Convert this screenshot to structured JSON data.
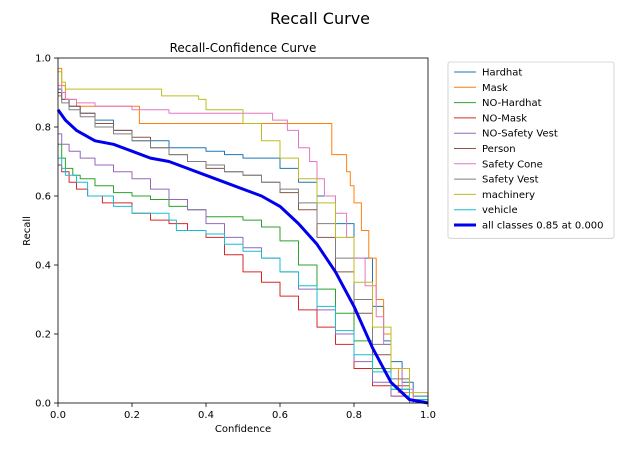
{
  "page_title": "Recall Curve",
  "chart_data": {
    "type": "line",
    "title": "Recall-Confidence Curve",
    "xlabel": "Confidence",
    "ylabel": "Recall",
    "xlim": [
      0,
      1
    ],
    "ylim": [
      0,
      1
    ],
    "xticks": [
      "0.0",
      "0.2",
      "0.4",
      "0.6",
      "0.8",
      "1.0"
    ],
    "yticks": [
      "0.0",
      "0.2",
      "0.4",
      "0.6",
      "0.8",
      "1.0"
    ],
    "grid": false,
    "legend_position": "outside-right",
    "series": [
      {
        "name": "Hardhat",
        "color": "#1f77b4",
        "step": true,
        "x": [
          0,
          0.01,
          0.03,
          0.06,
          0.1,
          0.15,
          0.2,
          0.3,
          0.4,
          0.45,
          0.5,
          0.55,
          0.6,
          0.65,
          0.7,
          0.75,
          0.8,
          0.85,
          0.88,
          0.9,
          0.93,
          0.96,
          1.0
        ],
        "y": [
          0.91,
          0.88,
          0.86,
          0.84,
          0.82,
          0.79,
          0.76,
          0.74,
          0.73,
          0.72,
          0.71,
          0.71,
          0.68,
          0.64,
          0.6,
          0.52,
          0.42,
          0.28,
          0.18,
          0.12,
          0.06,
          0.02,
          0.0
        ]
      },
      {
        "name": "Mask",
        "color": "#ff7f0e",
        "step": true,
        "x": [
          0,
          0.01,
          0.02,
          0.05,
          0.1,
          0.15,
          0.2,
          0.22,
          0.3,
          0.5,
          0.65,
          0.72,
          0.74,
          0.78,
          0.79,
          0.8,
          0.82,
          0.84,
          0.86,
          0.88,
          0.9,
          0.92,
          0.95,
          1.0
        ],
        "y": [
          0.97,
          0.92,
          0.88,
          0.86,
          0.86,
          0.86,
          0.86,
          0.81,
          0.81,
          0.81,
          0.81,
          0.81,
          0.72,
          0.67,
          0.63,
          0.58,
          0.5,
          0.42,
          0.3,
          0.2,
          0.1,
          0.03,
          0.0,
          0.0
        ]
      },
      {
        "name": "NO-Hardhat",
        "color": "#2ca02c",
        "step": true,
        "x": [
          0,
          0.01,
          0.02,
          0.04,
          0.06,
          0.1,
          0.15,
          0.2,
          0.25,
          0.3,
          0.35,
          0.4,
          0.5,
          0.55,
          0.6,
          0.65,
          0.7,
          0.75,
          0.8,
          0.85,
          0.9,
          0.95,
          1.0
        ],
        "y": [
          0.75,
          0.71,
          0.68,
          0.66,
          0.65,
          0.63,
          0.61,
          0.6,
          0.59,
          0.57,
          0.56,
          0.54,
          0.53,
          0.51,
          0.47,
          0.4,
          0.33,
          0.26,
          0.18,
          0.1,
          0.04,
          0.0,
          0.0
        ]
      },
      {
        "name": "NO-Mask",
        "color": "#d62728",
        "step": true,
        "x": [
          0,
          0.01,
          0.03,
          0.05,
          0.08,
          0.12,
          0.2,
          0.25,
          0.3,
          0.35,
          0.4,
          0.45,
          0.5,
          0.55,
          0.6,
          0.65,
          0.7,
          0.75,
          0.8,
          0.85,
          0.9,
          0.95,
          1.0
        ],
        "y": [
          0.69,
          0.67,
          0.64,
          0.62,
          0.6,
          0.58,
          0.55,
          0.53,
          0.52,
          0.5,
          0.48,
          0.43,
          0.38,
          0.35,
          0.31,
          0.27,
          0.22,
          0.17,
          0.1,
          0.05,
          0.02,
          0.0,
          0.0
        ]
      },
      {
        "name": "NO-Safety Vest",
        "color": "#9467bd",
        "step": true,
        "x": [
          0,
          0.01,
          0.03,
          0.06,
          0.1,
          0.15,
          0.2,
          0.25,
          0.3,
          0.35,
          0.4,
          0.45,
          0.5,
          0.55,
          0.6,
          0.65,
          0.7,
          0.75,
          0.8,
          0.85,
          0.9,
          0.95,
          1.0
        ],
        "y": [
          0.78,
          0.75,
          0.73,
          0.71,
          0.69,
          0.67,
          0.65,
          0.62,
          0.59,
          0.56,
          0.52,
          0.48,
          0.45,
          0.42,
          0.38,
          0.33,
          0.27,
          0.2,
          0.12,
          0.06,
          0.02,
          0.0,
          0.0
        ]
      },
      {
        "name": "Person",
        "color": "#8c564b",
        "step": true,
        "x": [
          0,
          0.01,
          0.03,
          0.06,
          0.1,
          0.15,
          0.2,
          0.25,
          0.3,
          0.35,
          0.4,
          0.45,
          0.5,
          0.55,
          0.6,
          0.65,
          0.7,
          0.75,
          0.8,
          0.85,
          0.9,
          0.95,
          1.0
        ],
        "y": [
          0.9,
          0.88,
          0.86,
          0.84,
          0.81,
          0.79,
          0.77,
          0.74,
          0.72,
          0.7,
          0.68,
          0.67,
          0.66,
          0.64,
          0.61,
          0.56,
          0.48,
          0.38,
          0.26,
          0.14,
          0.05,
          0.01,
          0.0
        ]
      },
      {
        "name": "Safety Cone",
        "color": "#e377c2",
        "step": true,
        "x": [
          0,
          0.01,
          0.02,
          0.05,
          0.1,
          0.15,
          0.2,
          0.3,
          0.4,
          0.5,
          0.55,
          0.58,
          0.62,
          0.65,
          0.68,
          0.7,
          0.72,
          0.75,
          0.78,
          0.8,
          0.83,
          0.86,
          0.88,
          0.9,
          0.93,
          0.96,
          1.0
        ],
        "y": [
          0.92,
          0.9,
          0.88,
          0.87,
          0.86,
          0.86,
          0.85,
          0.84,
          0.84,
          0.84,
          0.84,
          0.82,
          0.79,
          0.74,
          0.7,
          0.65,
          0.6,
          0.55,
          0.48,
          0.42,
          0.34,
          0.25,
          0.17,
          0.1,
          0.04,
          0.0,
          0.0
        ]
      },
      {
        "name": "Safety Vest",
        "color": "#7f7f7f",
        "step": true,
        "x": [
          0,
          0.01,
          0.03,
          0.06,
          0.1,
          0.15,
          0.2,
          0.25,
          0.3,
          0.35,
          0.4,
          0.45,
          0.5,
          0.55,
          0.6,
          0.65,
          0.7,
          0.75,
          0.8,
          0.85,
          0.9,
          0.95,
          1.0
        ],
        "y": [
          0.89,
          0.87,
          0.85,
          0.83,
          0.8,
          0.78,
          0.76,
          0.74,
          0.72,
          0.7,
          0.69,
          0.67,
          0.66,
          0.64,
          0.62,
          0.58,
          0.52,
          0.42,
          0.3,
          0.17,
          0.07,
          0.01,
          0.0
        ]
      },
      {
        "name": "machinery",
        "color": "#bcbd22",
        "step": true,
        "x": [
          0,
          0.01,
          0.02,
          0.05,
          0.1,
          0.2,
          0.28,
          0.3,
          0.38,
          0.4,
          0.45,
          0.5,
          0.55,
          0.6,
          0.65,
          0.7,
          0.75,
          0.8,
          0.85,
          0.9,
          0.95,
          1.0
        ],
        "y": [
          0.96,
          0.93,
          0.91,
          0.91,
          0.91,
          0.91,
          0.89,
          0.89,
          0.88,
          0.85,
          0.85,
          0.81,
          0.76,
          0.71,
          0.65,
          0.58,
          0.48,
          0.35,
          0.22,
          0.1,
          0.03,
          0.01
        ]
      },
      {
        "name": "vehicle",
        "color": "#17becf",
        "step": true,
        "x": [
          0,
          0.01,
          0.02,
          0.05,
          0.08,
          0.15,
          0.2,
          0.25,
          0.3,
          0.32,
          0.4,
          0.45,
          0.5,
          0.55,
          0.6,
          0.65,
          0.7,
          0.75,
          0.8,
          0.85,
          0.9,
          0.95,
          1.0
        ],
        "y": [
          0.71,
          0.68,
          0.66,
          0.64,
          0.6,
          0.57,
          0.55,
          0.55,
          0.53,
          0.5,
          0.49,
          0.46,
          0.44,
          0.42,
          0.38,
          0.34,
          0.28,
          0.21,
          0.14,
          0.09,
          0.04,
          0.01,
          0.0
        ]
      },
      {
        "name": "all classes 0.85 at 0.000",
        "color": "#0000ee",
        "bold": true,
        "step": false,
        "x": [
          0,
          0.02,
          0.05,
          0.1,
          0.15,
          0.2,
          0.25,
          0.3,
          0.35,
          0.4,
          0.45,
          0.5,
          0.55,
          0.6,
          0.65,
          0.7,
          0.75,
          0.8,
          0.85,
          0.9,
          0.95,
          1.0
        ],
        "y": [
          0.85,
          0.82,
          0.79,
          0.76,
          0.75,
          0.73,
          0.71,
          0.7,
          0.68,
          0.66,
          0.64,
          0.62,
          0.6,
          0.57,
          0.52,
          0.46,
          0.38,
          0.28,
          0.16,
          0.06,
          0.01,
          0.0
        ]
      }
    ]
  }
}
